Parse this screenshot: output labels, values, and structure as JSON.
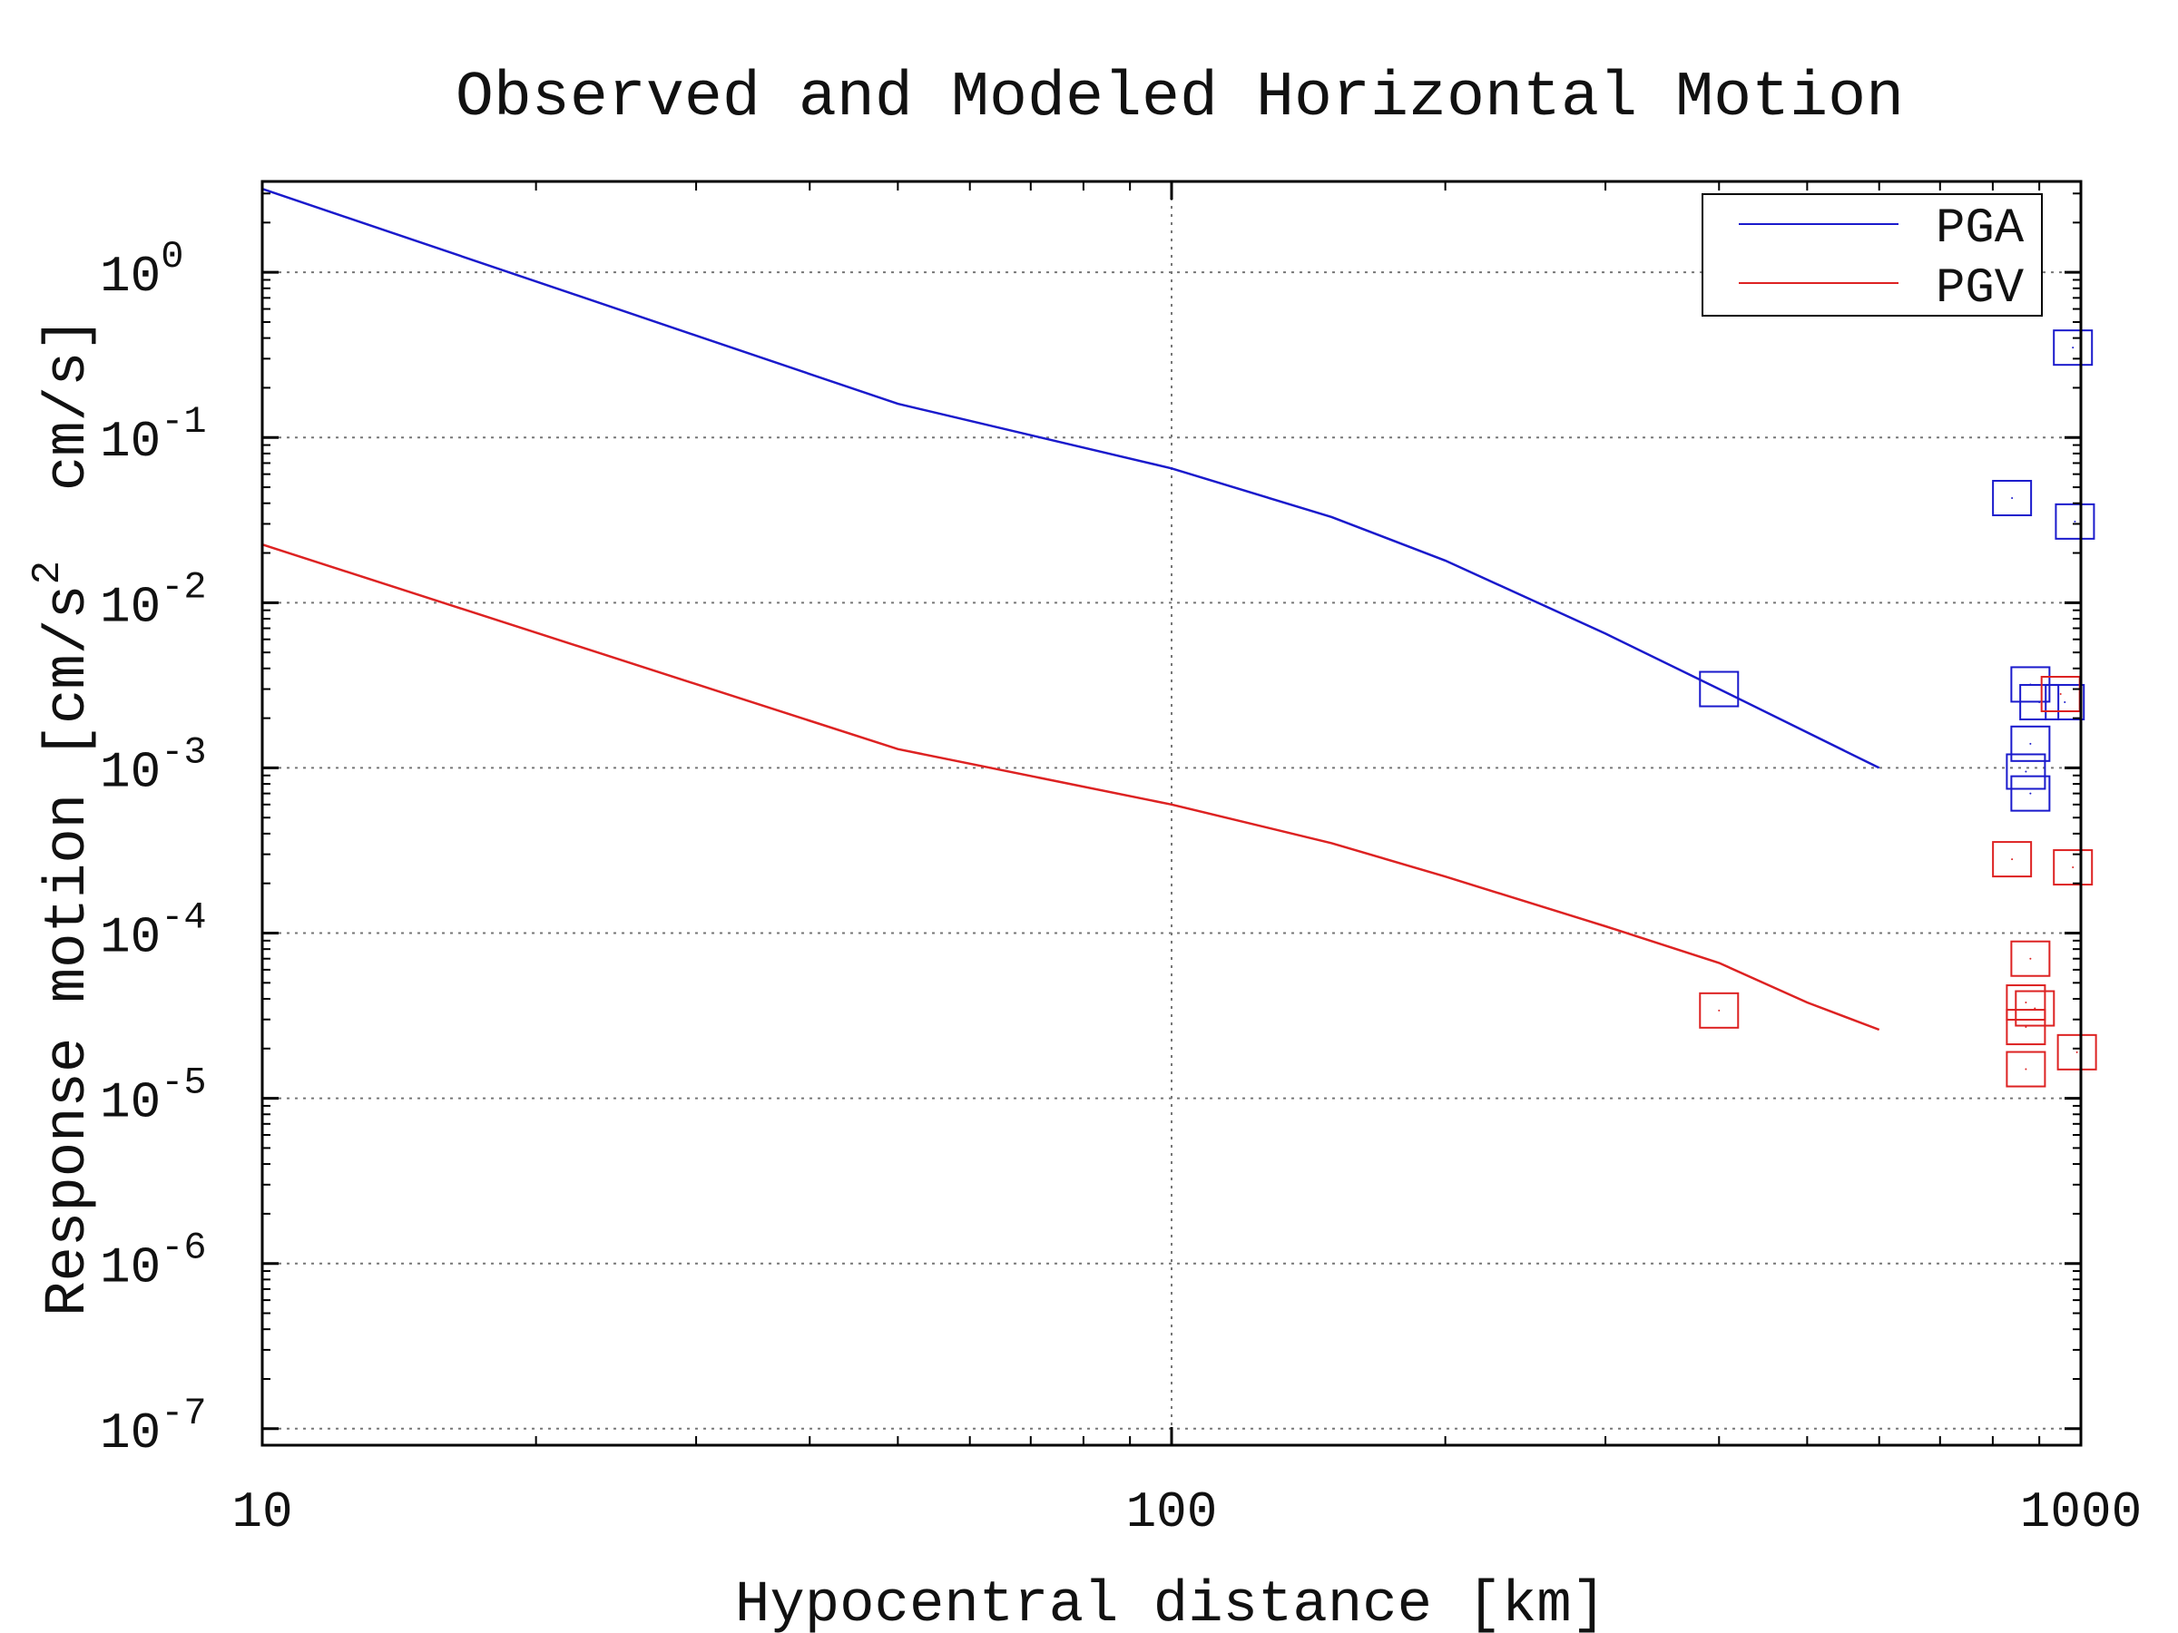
{
  "chart_data": {
    "type": "scatter",
    "title": "Observed and Modeled Horizontal Motion",
    "xlabel": "Hypocentral distance [km]",
    "ylabel_parts": [
      "Response motion [cm/s",
      "2",
      "  cm/s]"
    ],
    "xscale": "log",
    "yscale": "log",
    "xlim": [
      10,
      1000
    ],
    "ylim_exp": [
      -7.1,
      0.55
    ],
    "grid": true,
    "legend_position": "top-right",
    "x_ticks": [
      {
        "value": 10,
        "label": "10"
      },
      {
        "value": 100,
        "label": "100"
      },
      {
        "value": 1000,
        "label": "1000"
      }
    ],
    "y_ticks": [
      {
        "exp": 0,
        "base": "10",
        "sup": "0"
      },
      {
        "exp": -1,
        "base": "10",
        "sup": "-1"
      },
      {
        "exp": -2,
        "base": "10",
        "sup": "-2"
      },
      {
        "exp": -3,
        "base": "10",
        "sup": "-3"
      },
      {
        "exp": -4,
        "base": "10",
        "sup": "-4"
      },
      {
        "exp": -5,
        "base": "10",
        "sup": "-5"
      },
      {
        "exp": -6,
        "base": "10",
        "sup": "-6"
      },
      {
        "exp": -7,
        "base": "10",
        "sup": "-7"
      }
    ],
    "series": [
      {
        "name": "PGA",
        "color": "#1a1acc",
        "line": {
          "x": [
            10,
            50,
            100,
            150,
            200,
            300,
            400,
            600
          ],
          "y": [
            3.2,
            0.16,
            0.065,
            0.033,
            0.018,
            0.0065,
            0.003,
            0.001
          ]
        },
        "observed": {
          "x": [
            400,
            840,
            980,
            880,
            900,
            880,
            870,
            880,
            985,
            960
          ],
          "y": [
            0.003,
            0.043,
            0.35,
            0.0032,
            0.0025,
            0.0014,
            0.00095,
            0.0007,
            0.031,
            0.0025
          ]
        }
      },
      {
        "name": "PGV",
        "color": "#dd2222",
        "line": {
          "x": [
            10,
            50,
            100,
            150,
            200,
            300,
            400,
            500,
            600
          ],
          "y": [
            0.0225,
            0.0013,
            0.0006,
            0.00035,
            0.00022,
            0.00011,
            6.6e-05,
            3.8e-05,
            2.6e-05
          ],
          "smooth": true
        },
        "observed": {
          "x": [
            400,
            840,
            880,
            870,
            890,
            870,
            870,
            990,
            950,
            980
          ],
          "y": [
            3.4e-05,
            0.00028,
            7e-05,
            3.8e-05,
            3.5e-05,
            2.7e-05,
            1.5e-05,
            1.9e-05,
            0.0028,
            0.00025
          ]
        }
      }
    ]
  }
}
